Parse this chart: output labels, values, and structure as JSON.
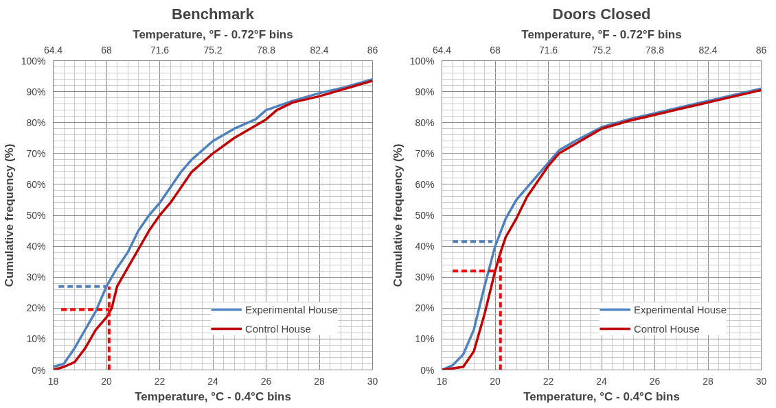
{
  "chart_data": [
    {
      "type": "line",
      "title": "Benchmark",
      "xlabel": "Temperature, °C - 0.4°C bins",
      "x2label": "Temperature, °F - 0.72°F bins",
      "ylabel": "Cumulative frequency (%)",
      "xlim": [
        18,
        30
      ],
      "xticks": [
        18,
        20,
        22,
        24,
        26,
        28,
        30
      ],
      "x2lim": [
        64.4,
        86
      ],
      "x2ticks": [
        64.4,
        68,
        71.6,
        75.2,
        78.8,
        82.4,
        86
      ],
      "ylim": [
        0,
        100
      ],
      "yticks": [
        {
          "value": 0,
          "label": "0%"
        },
        {
          "value": 10,
          "label": "10%"
        },
        {
          "value": 20,
          "label": "20%"
        },
        {
          "value": 30,
          "label": "30%"
        },
        {
          "value": 40,
          "label": "40%"
        },
        {
          "value": 50,
          "label": "50%"
        },
        {
          "value": 60,
          "label": "60%"
        },
        {
          "value": 70,
          "label": "70%"
        },
        {
          "value": 80,
          "label": "80%"
        },
        {
          "value": 90,
          "label": "90%"
        },
        {
          "value": 100,
          "label": "100%"
        }
      ],
      "grid": true,
      "legend": "bottom right",
      "line_style": "solid",
      "series": [
        {
          "name": "Experimental House",
          "color": "#4f81bd",
          "x": [
            18,
            18.4,
            18.8,
            19.2,
            19.6,
            20,
            20.4,
            20.8,
            21.2,
            21.6,
            22,
            22.4,
            22.8,
            23.2,
            24,
            24.8,
            25.6,
            26,
            27,
            28,
            29,
            30
          ],
          "values": [
            1,
            2,
            7,
            13,
            19,
            27,
            33,
            38,
            45,
            50,
            54,
            59,
            64,
            68,
            74,
            78,
            81,
            84,
            87,
            89.5,
            91.5,
            94
          ]
        },
        {
          "name": "Control House",
          "color": "#c00000",
          "x": [
            18,
            18.4,
            18.8,
            19.2,
            19.6,
            20,
            20.2,
            20.4,
            20.8,
            21.2,
            21.6,
            22,
            22.4,
            22.8,
            23.2,
            24,
            24.8,
            25.6,
            26,
            26.4,
            27,
            28,
            29,
            30
          ],
          "values": [
            0,
            1,
            2.5,
            7,
            13,
            17,
            20,
            27,
            33,
            39,
            45,
            50,
            54,
            59,
            64,
            70,
            75,
            79,
            81,
            84,
            86.5,
            88.5,
            91,
            93.5
          ]
        },
        {
          "type": "line",
          "line_style": "dashed",
          "color": "#4f81bd",
          "x": [
            18.2,
            20
          ],
          "values": [
            27,
            27
          ]
        },
        {
          "type": "line",
          "line_style": "dashed",
          "color": "#ff0000",
          "x": [
            18.3,
            20.1
          ],
          "values": [
            19.5,
            19.5
          ]
        },
        {
          "type": "line",
          "line_style": "dashed",
          "color": "#ff0000",
          "x": [
            20.1,
            20.1
          ],
          "values": [
            0,
            27
          ]
        }
      ]
    },
    {
      "type": "line",
      "title": "Doors Closed",
      "xlabel": "Temperature, °C - 0.4°C bins",
      "x2label": "Temperature, °F - 0.72°F bins",
      "ylabel": "Cumulative frequency (%)",
      "xlim": [
        18,
        30
      ],
      "xticks": [
        18,
        20,
        22,
        24,
        26,
        28,
        30
      ],
      "x2lim": [
        64.4,
        86
      ],
      "x2ticks": [
        64.4,
        68,
        71.6,
        75.2,
        78.8,
        82.4,
        86
      ],
      "ylim": [
        0,
        100
      ],
      "yticks": [
        {
          "value": 0,
          "label": "0%"
        },
        {
          "value": 10,
          "label": "10%"
        },
        {
          "value": 20,
          "label": "20%"
        },
        {
          "value": 30,
          "label": "30%"
        },
        {
          "value": 40,
          "label": "40%"
        },
        {
          "value": 50,
          "label": "50%"
        },
        {
          "value": 60,
          "label": "60%"
        },
        {
          "value": 70,
          "label": "70%"
        },
        {
          "value": 80,
          "label": "80%"
        },
        {
          "value": 90,
          "label": "90%"
        },
        {
          "value": 100,
          "label": "100%"
        }
      ],
      "grid": true,
      "legend": "bottom right",
      "line_style": "solid",
      "series": [
        {
          "name": "Experimental House",
          "color": "#4f81bd",
          "x": [
            18,
            18.4,
            18.8,
            19.2,
            19.6,
            20,
            20.4,
            20.8,
            21.2,
            21.6,
            22,
            22.4,
            23,
            24,
            25,
            26,
            27,
            28,
            29,
            30
          ],
          "values": [
            0,
            1.5,
            5,
            13,
            27,
            40,
            49,
            55,
            59,
            63,
            67,
            71,
            74,
            78.5,
            81,
            83,
            85,
            87,
            89,
            91
          ]
        },
        {
          "name": "Control House",
          "color": "#c00000",
          "x": [
            18,
            18.8,
            19.2,
            19.6,
            20,
            20.2,
            20.4,
            20.8,
            21.2,
            21.6,
            22,
            22.4,
            23,
            24,
            25,
            26,
            27,
            28,
            29,
            30
          ],
          "values": [
            0,
            1,
            6,
            18,
            32,
            38,
            43,
            49,
            56,
            61,
            66,
            70,
            73,
            78,
            80.5,
            82.5,
            84.5,
            86.5,
            88.5,
            90.5
          ]
        },
        {
          "type": "line",
          "line_style": "dashed",
          "color": "#4f81bd",
          "x": [
            18.4,
            19.9
          ],
          "values": [
            41.5,
            41.5
          ]
        },
        {
          "type": "line",
          "line_style": "dashed",
          "color": "#ff0000",
          "x": [
            18.4,
            20
          ],
          "values": [
            32,
            32
          ]
        },
        {
          "type": "line",
          "line_style": "dashed",
          "color": "#ff0000",
          "x": [
            20.2,
            20.2
          ],
          "values": [
            0,
            38
          ]
        }
      ]
    }
  ]
}
